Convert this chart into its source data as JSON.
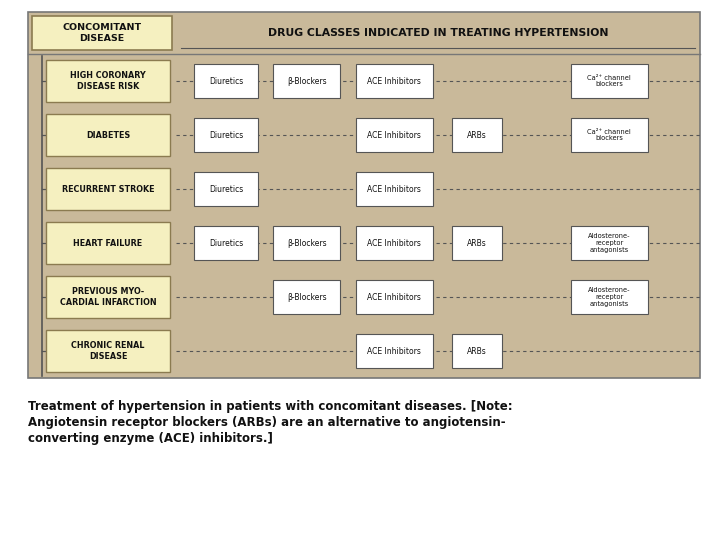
{
  "bg_color": "#c9b99a",
  "outer_bg": "#ffffff",
  "disease_box_bg": "#f5f0c0",
  "disease_box_border": "#8b7b50",
  "drug_box_bg": "#ffffff",
  "drug_box_border": "#555555",
  "title_text": "DRUG CLASSES INDICATED IN TREATING HYPERTENSION",
  "concomitant_label": "CONCOMITANT\nDISEASE",
  "caption_line1": "Treatment of hypertension in patients with concomitant diseases. [Note:",
  "caption_line2": "Angiotensin receptor blockers (ARBs) are an alternative to angiotensin-",
  "caption_line3": "converting enzyme (ACE) inhibitors.]",
  "rows": [
    {
      "disease": "HIGH CORONARY\nDISEASE RISK",
      "drugs": [
        "Diuretics",
        "β-Blockers",
        "ACE Inhibitors",
        "Ca²⁺ channel\nblockers"
      ]
    },
    {
      "disease": "DIABETES",
      "drugs": [
        "Diuretics",
        "ACE Inhibitors",
        "ARBs",
        "Ca²⁺ channel\nblockers"
      ]
    },
    {
      "disease": "RECURRENT STROKE",
      "drugs": [
        "Diuretics",
        "ACE Inhibitors"
      ]
    },
    {
      "disease": "HEART FAILURE",
      "drugs": [
        "Diuretics",
        "β-Blockers",
        "ACE Inhibitors",
        "ARBs",
        "Aldosterone-\nreceptor\nantagonists"
      ]
    },
    {
      "disease": "PREVIOUS MYO-\nCARDIAL INFARCTION",
      "drugs": [
        "β-Blockers",
        "ACE Inhibitors",
        "Aldosterone-\nreceptor\nantagonists"
      ]
    },
    {
      "disease": "CHRONIC RENAL\nDISEASE",
      "drugs": [
        "ACE Inhibitors",
        "ARBs"
      ]
    }
  ],
  "drug_xpos_by_row": {
    "0": {
      "Diuretics": 0.295,
      "β-Blockers": 0.415,
      "ACE Inhibitors": 0.545,
      "Ca²⁺ channel\nblockers": 0.865
    },
    "1": {
      "Diuretics": 0.295,
      "ACE Inhibitors": 0.545,
      "ARBs": 0.668,
      "Ca²⁺ channel\nblockers": 0.865
    },
    "2": {
      "Diuretics": 0.295,
      "ACE Inhibitors": 0.545
    },
    "3": {
      "Diuretics": 0.295,
      "β-Blockers": 0.415,
      "ACE Inhibitors": 0.545,
      "ARBs": 0.668,
      "Aldosterone-\nreceptor\nantagonists": 0.865
    },
    "4": {
      "β-Blockers": 0.415,
      "ACE Inhibitors": 0.545,
      "Aldosterone-\nreceptor\nantagonists": 0.865
    },
    "5": {
      "ACE Inhibitors": 0.545,
      "ARBs": 0.668
    }
  },
  "drug_widths": {
    "Diuretics": 0.095,
    "β-Blockers": 0.1,
    "ACE Inhibitors": 0.115,
    "ARBs": 0.075,
    "Ca²⁺ channel\nblockers": 0.115,
    "Aldosterone-\nreceptor\nantagonists": 0.115
  }
}
